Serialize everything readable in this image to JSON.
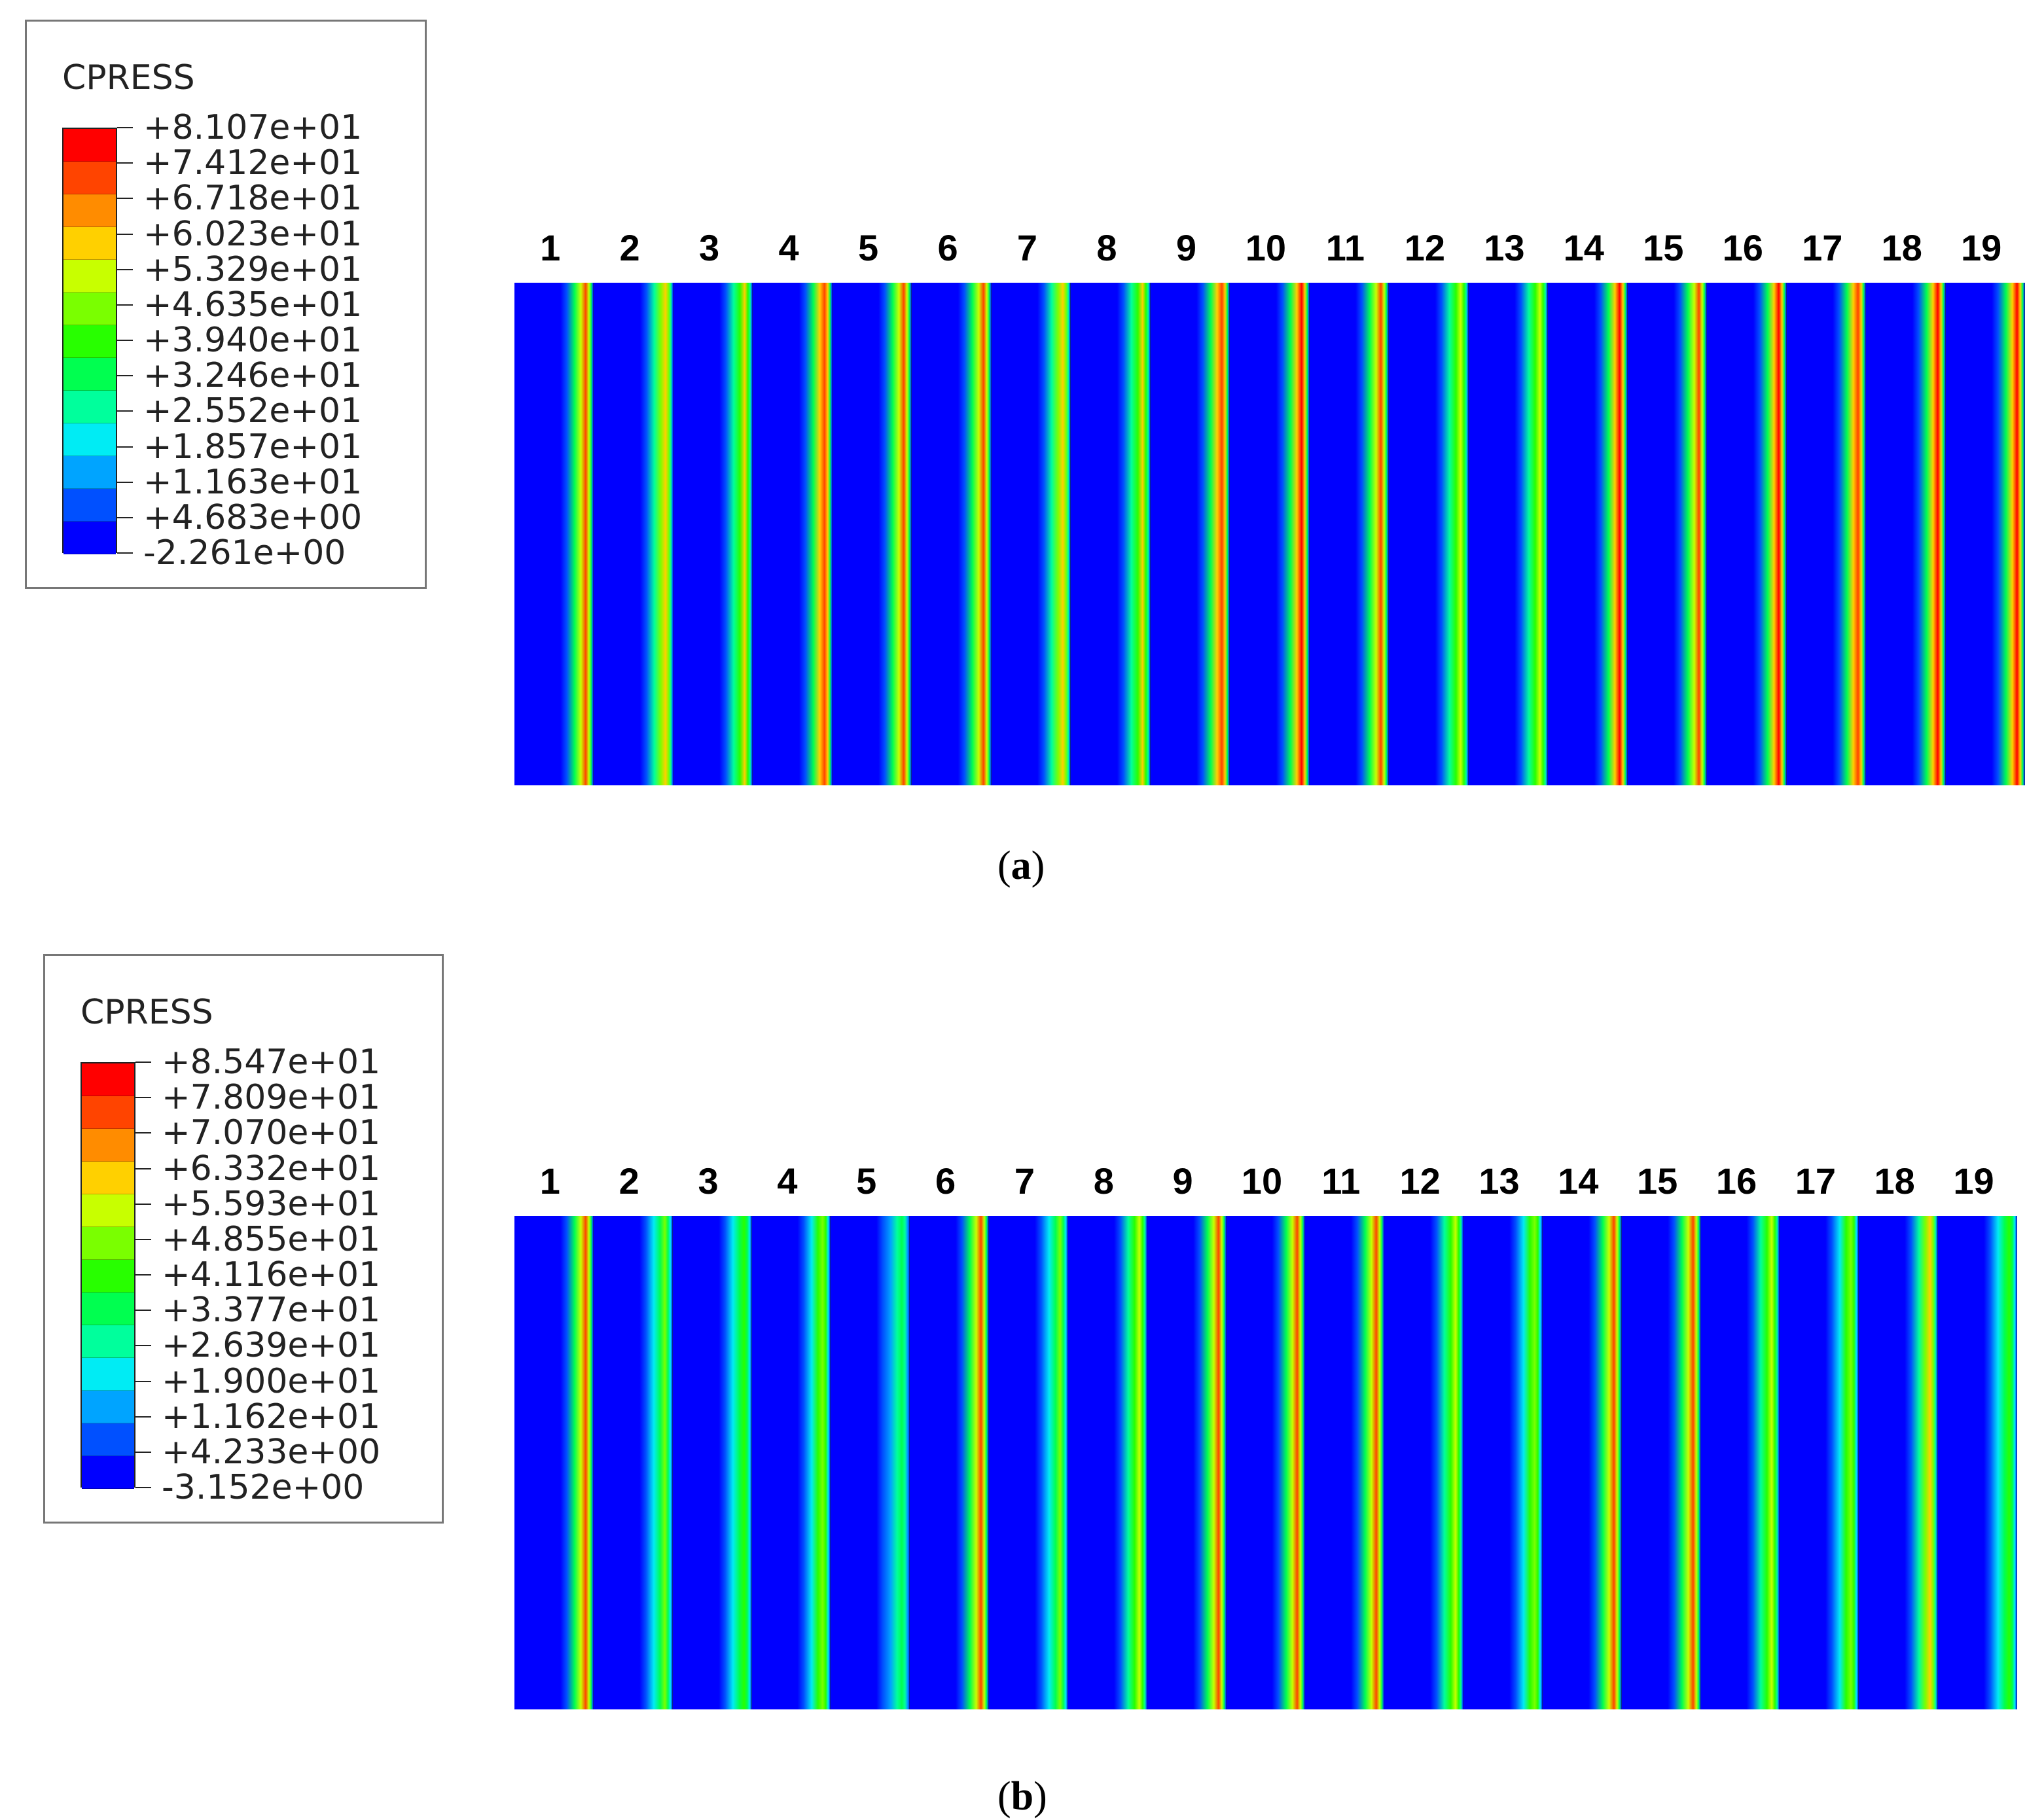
{
  "figure_a": {
    "legend_title": "CPRESS",
    "legend_values": [
      "+8.107e+01",
      "+7.412e+01",
      "+6.718e+01",
      "+6.023e+01",
      "+5.329e+01",
      "+4.635e+01",
      "+3.940e+01",
      "+3.246e+01",
      "+2.552e+01",
      "+1.857e+01",
      "+1.163e+01",
      "+4.683e+00",
      "-2.261e+00"
    ],
    "plate_labels": [
      "1",
      "2",
      "3",
      "4",
      "5",
      "6",
      "7",
      "8",
      "9",
      "10",
      "11",
      "12",
      "13",
      "14",
      "15",
      "16",
      "17",
      "18",
      "19"
    ],
    "caption_open": "(",
    "caption_letter": "a",
    "caption_close": ")",
    "peak_levels": [
      0.92,
      0.78,
      0.72,
      0.95,
      0.93,
      0.9,
      0.75,
      0.72,
      0.95,
      0.98,
      0.92,
      0.7,
      0.66,
      0.97,
      0.93,
      0.97,
      0.95,
      0.97,
      0.98
    ]
  },
  "figure_b": {
    "legend_title": "CPRESS",
    "legend_values": [
      "+8.547e+01",
      "+7.809e+01",
      "+7.070e+01",
      "+6.332e+01",
      "+5.593e+01",
      "+4.855e+01",
      "+4.116e+01",
      "+3.377e+01",
      "+2.639e+01",
      "+1.900e+01",
      "+1.162e+01",
      "+4.233e+00",
      "-3.152e+00"
    ],
    "plate_labels": [
      "1",
      "2",
      "3",
      "4",
      "5",
      "6",
      "7",
      "8",
      "9",
      "10",
      "11",
      "12",
      "13",
      "14",
      "15",
      "16",
      "17",
      "18",
      "19"
    ],
    "caption_open": "(",
    "caption_letter": "b",
    "caption_close": ")",
    "peak_levels": [
      0.9,
      0.6,
      0.5,
      0.62,
      0.45,
      0.92,
      0.6,
      0.65,
      0.9,
      0.88,
      0.9,
      0.65,
      0.62,
      0.9,
      0.88,
      0.7,
      0.62,
      0.75,
      0.5
    ]
  },
  "colormap": [
    "#0000ff",
    "#0050ff",
    "#00a4ff",
    "#00ecf4",
    "#00ff9c",
    "#00ff50",
    "#28ff00",
    "#7aff00",
    "#c8ff00",
    "#ffd000",
    "#ff8c00",
    "#ff4400",
    "#ff0000"
  ]
}
